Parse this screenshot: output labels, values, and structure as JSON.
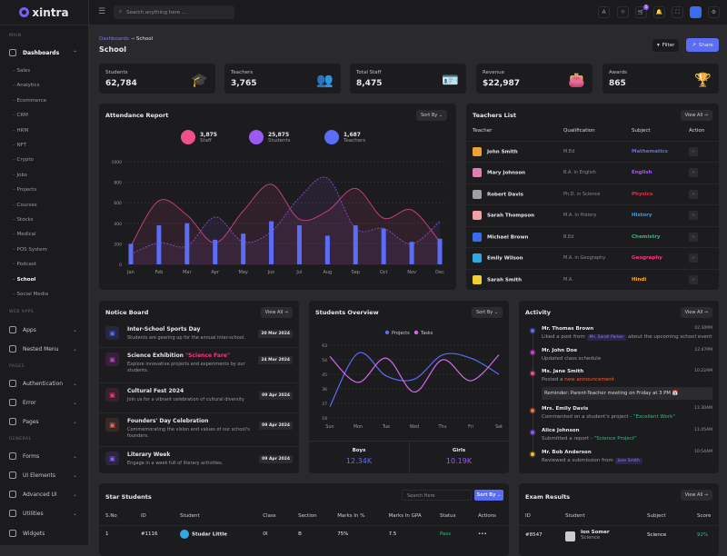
{
  "brand": "xintra",
  "sidebar": {
    "section_main": "MAIN",
    "dashboards": "Dashboards",
    "subitems": [
      "Sales",
      "Analytics",
      "Ecommerce",
      "CRM",
      "HRM",
      "NFT",
      "Crypto",
      "Jobs",
      "Projects",
      "Courses",
      "Stocks",
      "Medical",
      "POS System",
      "Podcast",
      "School",
      "Social Media"
    ],
    "active": "School",
    "section_webapps": "WEB APPS",
    "apps": "Apps",
    "nested": "Nested Menu",
    "section_pages": "PAGES",
    "auth": "Authentication",
    "error": "Error",
    "pages": "Pages",
    "section_general": "GENERAL",
    "forms": "Forms",
    "ui": "UI Elements",
    "advanced": "Advanced UI",
    "utilities": "Utilities",
    "widgets": "Widgets"
  },
  "header": {
    "search_placeholder": "Search anything here ...",
    "cart_badge": "5"
  },
  "page": {
    "breadcrumb_parent": "Dashboards",
    "breadcrumb_current": "School",
    "title": "School",
    "filter": "Filter",
    "share": "Share"
  },
  "stats": [
    {
      "label": "Students",
      "value": "62,784",
      "icon": "graduation-cap-icon",
      "color": "#5b6cf5"
    },
    {
      "label": "Teachers",
      "value": "3,765",
      "icon": "user-plus-icon",
      "color": "#e040c8"
    },
    {
      "label": "Total Staff",
      "value": "8,475",
      "icon": "id-badge-icon",
      "color": "#f0508a"
    },
    {
      "label": "Revenue",
      "value": "$22,987",
      "icon": "wallet-icon",
      "color": "#f07050"
    },
    {
      "label": "Awards",
      "value": "865",
      "icon": "trophy-icon",
      "color": "#f5b82e"
    }
  ],
  "attendance": {
    "title": "Attendance Report",
    "sort": "Sort By",
    "legend": [
      {
        "value": "3,875",
        "label": "Staff",
        "color": "#f0508a"
      },
      {
        "value": "25,875",
        "label": "Students",
        "color": "#9b59f5"
      },
      {
        "value": "1,687",
        "label": "Teachers",
        "color": "#5b6cf5"
      }
    ]
  },
  "chart_data": [
    {
      "type": "bar+line",
      "categories": [
        "Jan",
        "Feb",
        "Mar",
        "Apr",
        "May",
        "Jun",
        "Jul",
        "Aug",
        "Sep",
        "Oct",
        "Nov",
        "Dec"
      ],
      "ylim": [
        0,
        1000
      ],
      "yticks": [
        0,
        200,
        400,
        600,
        800,
        1000
      ],
      "grid": true,
      "series": [
        {
          "kind": "bar",
          "color": "#5b6cf5",
          "values": [
            200,
            380,
            400,
            240,
            300,
            420,
            380,
            280,
            380,
            350,
            220,
            250
          ]
        },
        {
          "kind": "area-line",
          "color": "#c0407a",
          "values": [
            180,
            620,
            480,
            210,
            520,
            780,
            440,
            520,
            740,
            450,
            530,
            220
          ]
        },
        {
          "kind": "dashed-area-line",
          "color": "#7a4cc0",
          "values": [
            100,
            210,
            180,
            460,
            220,
            320,
            650,
            840,
            350,
            350,
            200,
            420
          ]
        }
      ]
    },
    {
      "type": "line",
      "categories": [
        "Sun",
        "Mon",
        "Tue",
        "Wed",
        "Thu",
        "Fri",
        "Sat"
      ],
      "ylim": [
        18,
        63
      ],
      "yticks": [
        18,
        27,
        36,
        45,
        54,
        63
      ],
      "grid": true,
      "legend": "top",
      "series": [
        {
          "name": "Projects",
          "color": "#5b6cf5",
          "values": [
            25,
            58,
            44,
            42,
            57,
            55,
            45
          ]
        },
        {
          "name": "Tasks",
          "color": "#d06ae8",
          "values": [
            56,
            40,
            55,
            34,
            54,
            41,
            57
          ]
        }
      ]
    }
  ],
  "teachers": {
    "title": "Teachers List",
    "view_all": "View All →",
    "headers": [
      "Teacher",
      "Qualification",
      "Subject",
      "Action"
    ],
    "rows": [
      {
        "name": "John Smith",
        "qual": "M.Ed",
        "subject": "Mathematics",
        "color": "#5b6cf5",
        "av": "#f0a030"
      },
      {
        "name": "Mary Johnson",
        "qual": "B.A. in English",
        "subject": "English",
        "color": "#a855f7",
        "av": "#e080b0"
      },
      {
        "name": "Robert Davis",
        "qual": "Ph.D. in Science",
        "subject": "Physics",
        "color": "#e03040",
        "av": "#a0a0a0"
      },
      {
        "name": "Sarah Thompson",
        "qual": "M.A. in History",
        "subject": "History",
        "color": "#3b9de0",
        "av": "#f0a0a0"
      },
      {
        "name": "Michael Brown",
        "qual": "B.Ed",
        "subject": "Chemistry",
        "color": "#20c080",
        "av": "#3b6cf0"
      },
      {
        "name": "Emily Wilson",
        "qual": "M.A. in Geography",
        "subject": "Geography",
        "color": "#f03d7a",
        "av": "#30a8e0"
      },
      {
        "name": "Sarah Smith",
        "qual": "M.A.",
        "subject": "Hindi",
        "color": "#f0b030",
        "av": "#f0d030"
      }
    ]
  },
  "notice": {
    "title": "Notice Board",
    "view_all": "View All →",
    "items": [
      {
        "title": "Inter-School Sports Day",
        "highlight": "",
        "desc": "Students are gearing up for the annual inter-school.",
        "date": "20 Mar 2024",
        "icon": "gift-icon",
        "color": "#5b6cf5"
      },
      {
        "title": "Science Exhibition ",
        "highlight": "\"Science Fare\"",
        "desc": "Explore innovative projects and experiments by our students.",
        "date": "24 Mar 2024",
        "icon": "calendar-icon",
        "color": "#c040c0"
      },
      {
        "title": "Cultural Fest 2024",
        "highlight": "",
        "desc": "Join us for a vibrant celebration of cultural diversity",
        "date": "09 Apr 2024",
        "icon": "chart-icon",
        "color": "#e0407a"
      },
      {
        "title": "Founders' Day Celebration",
        "highlight": "",
        "desc": "Commemorating the vision and values of our school's founders.",
        "date": "09 Apr 2024",
        "icon": "calendar-icon",
        "color": "#e07050"
      },
      {
        "title": "Literary Week",
        "highlight": "",
        "desc": "Engage in a week full of literary activities.",
        "date": "09 Apr 2024",
        "icon": "smile-icon",
        "color": "#8b5cf6"
      }
    ]
  },
  "overview": {
    "title": "Students Overview",
    "sort": "Sort By",
    "boys_label": "Boys",
    "boys": "12.34K",
    "girls_label": "Girls",
    "girls": "10.19K"
  },
  "activity": {
    "title": "Activity",
    "view_all": "View All →",
    "items": [
      {
        "name": "Mr. Thomas Brown",
        "time": "02:30PM",
        "pre": "Liked a post from ",
        "tag": "Ms. Sarah Parker",
        "post": " about the upcoming school event",
        "color": "#5b6cf5"
      },
      {
        "name": "Mr. John Doe",
        "time": "12:47PM",
        "pre": "Updated class schedule",
        "color": "#d040d0"
      },
      {
        "name": "Ms. Jane Smith",
        "time": "10:22AM",
        "pre": "Posted a ",
        "hl": "new announcement",
        "hlcolor": "#f06040",
        "color": "#f0508a",
        "note": "Reminder: Parent-Teacher meeting on Friday at 3 PM 📅"
      },
      {
        "name": "Mrs. Emily Davis",
        "time": "11:30AM",
        "pre": "Commented on a student's project - ",
        "hl": "\"Excellent Work\"",
        "hlcolor": "#20c080",
        "color": "#f07050"
      },
      {
        "name": "Alice Johnson",
        "time": "11:45AM",
        "pre": "Submitted a report - ",
        "hl": "\"Science Project\"",
        "hlcolor": "#20c080",
        "color": "#8b5cf6"
      },
      {
        "name": "Mr. Bob Anderson",
        "time": "10:54AM",
        "pre": "Reviewed a submission from ",
        "tag": "Jane Smith",
        "color": "#f0c030"
      }
    ]
  },
  "star": {
    "title": "Star Students",
    "search_placeholder": "Search Here",
    "sort": "Sort By",
    "headers": [
      "S.No",
      "ID",
      "Student",
      "Class",
      "Section",
      "Marks In %",
      "Marks In GPA",
      "Status",
      "Actions"
    ],
    "rows": [
      {
        "sno": "1",
        "id": "#1116",
        "student": "Studar Little",
        "class": "IX",
        "section": "B",
        "pct": "75%",
        "gpa": "7.5",
        "status": "Pass",
        "actions": "•••"
      }
    ]
  },
  "exam": {
    "title": "Exam Results",
    "view_all": "View All →",
    "headers": [
      "ID",
      "Student",
      "Subject",
      "Score"
    ],
    "rows": [
      {
        "id": "#8547",
        "student": "Ion Somer",
        "sub": "Science",
        "subject": "Science",
        "score": "92%"
      }
    ]
  }
}
